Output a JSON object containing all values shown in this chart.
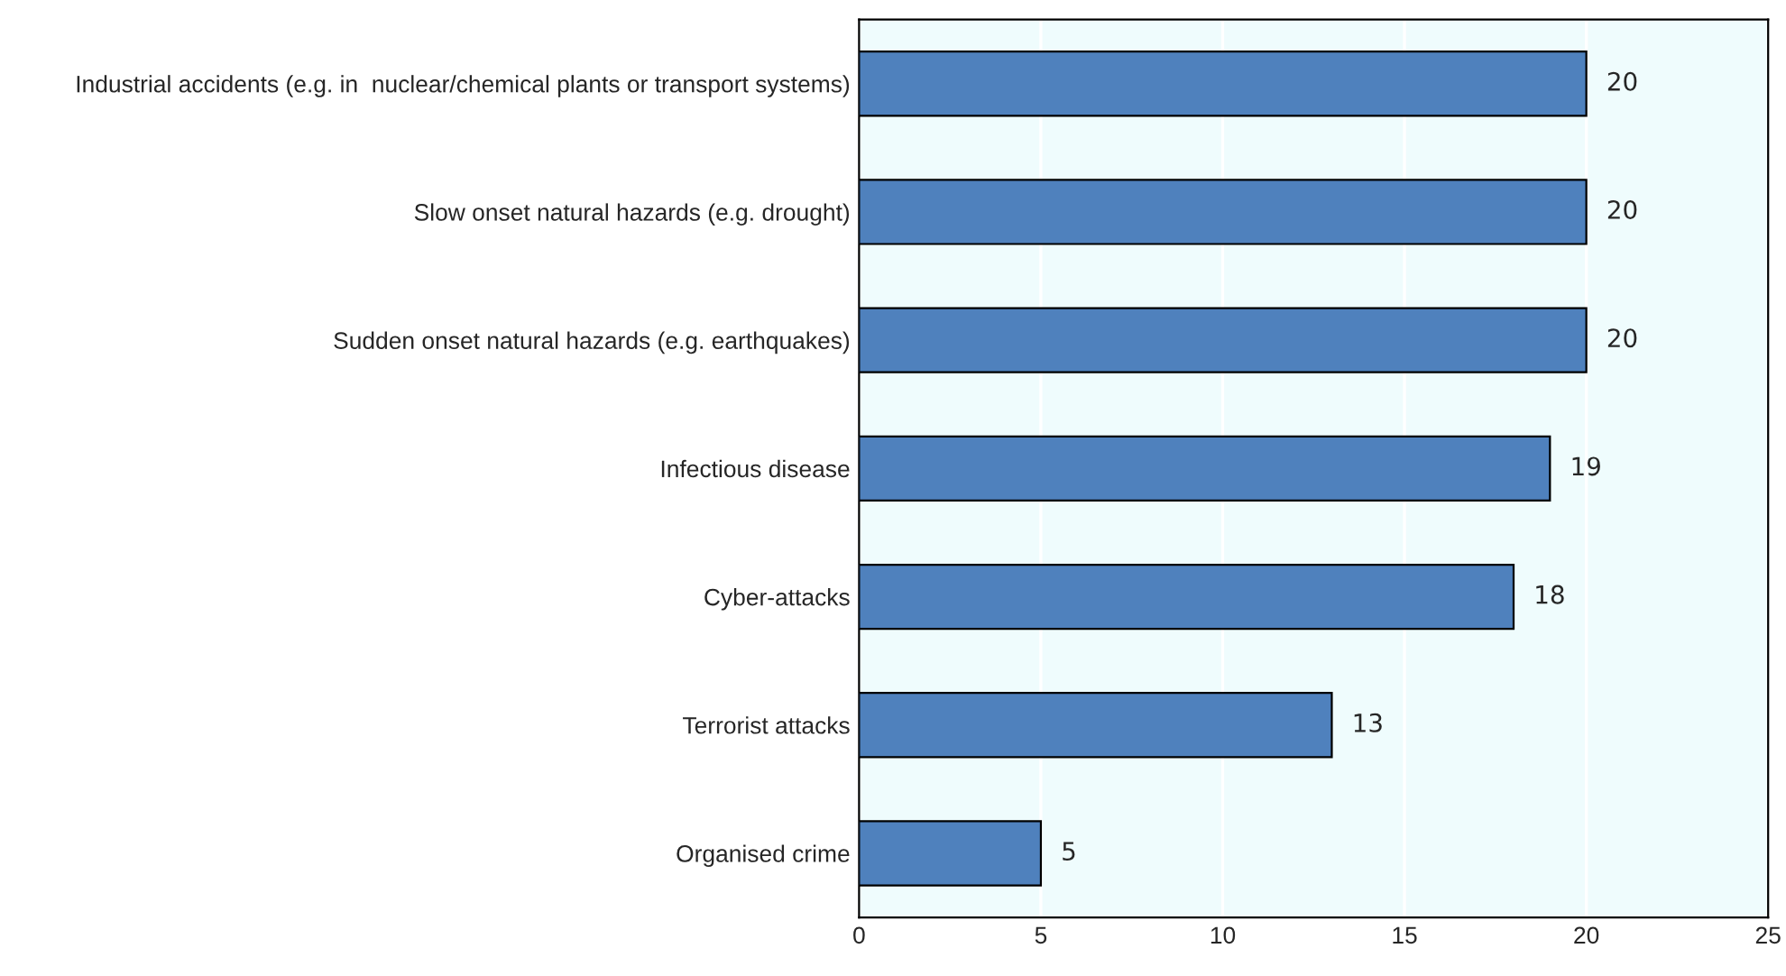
{
  "chart_data": {
    "type": "bar",
    "orientation": "horizontal",
    "categories": [
      "Industrial accidents (e.g. in  nuclear/chemical plants or transport systems)",
      "Slow onset natural hazards (e.g. drought)",
      "Sudden onset natural hazards (e.g. earthquakes)",
      "Infectious disease",
      "Cyber-attacks",
      "Terrorist attacks",
      "Organised crime"
    ],
    "values": [
      20,
      20,
      20,
      19,
      18,
      13,
      5
    ],
    "color": "#4f81bd",
    "xlim": [
      0,
      25
    ],
    "xticks": [
      0,
      5,
      10,
      15,
      20,
      25
    ],
    "grid": "x",
    "data_labels": true,
    "legend": false
  }
}
